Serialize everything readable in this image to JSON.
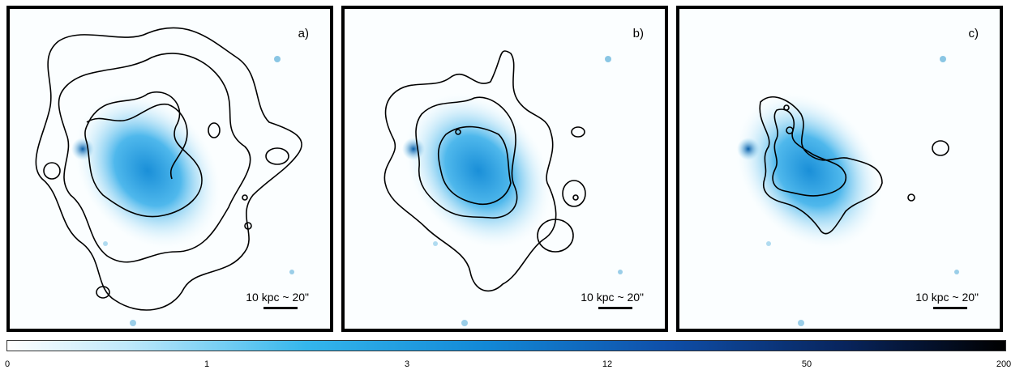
{
  "panels": [
    {
      "label": "a)",
      "scale_text": "10 kpc ~ 20\""
    },
    {
      "label": "b)",
      "scale_text": "10 kpc ~ 20\""
    },
    {
      "label": "c)",
      "scale_text": "10 kpc ~ 20\""
    }
  ],
  "colorbar": {
    "ticks": [
      "0",
      "1",
      "3",
      "12",
      "50",
      "200"
    ],
    "colors": [
      "#ffffff",
      "#34b6ec",
      "#1288d6",
      "#0f4fa9",
      "#000000"
    ]
  }
}
